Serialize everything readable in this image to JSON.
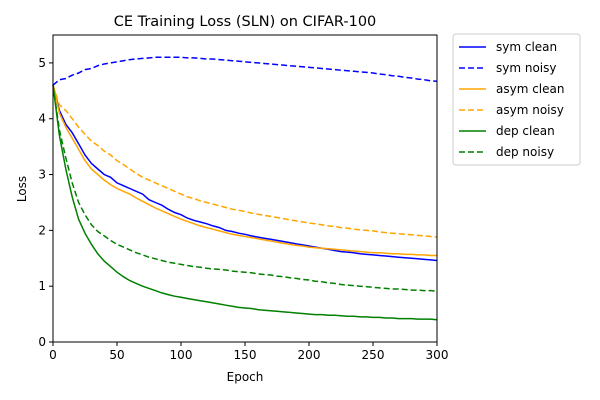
{
  "chart_data": {
    "type": "line",
    "title": "CE Training Loss (SLN) on CIFAR-100",
    "xlabel": "Epoch",
    "ylabel": "Loss",
    "xlim": [
      0,
      300
    ],
    "ylim": [
      0,
      5.5
    ],
    "xticks": [
      0,
      50,
      100,
      150,
      200,
      250,
      300
    ],
    "yticks": [
      0,
      1,
      2,
      3,
      4,
      5
    ],
    "grid": false,
    "legend_position": "outside-right",
    "x": [
      0,
      5,
      10,
      15,
      20,
      25,
      30,
      35,
      40,
      45,
      50,
      55,
      60,
      65,
      70,
      75,
      80,
      85,
      90,
      95,
      100,
      105,
      110,
      115,
      120,
      125,
      130,
      135,
      140,
      145,
      150,
      155,
      160,
      165,
      170,
      175,
      180,
      185,
      190,
      195,
      200,
      205,
      210,
      215,
      220,
      225,
      230,
      235,
      240,
      245,
      250,
      255,
      260,
      265,
      270,
      275,
      280,
      285,
      290,
      295,
      300
    ],
    "series": [
      {
        "name": "sym clean",
        "color": "#0000ff",
        "dash": "solid",
        "values": [
          4.6,
          4.15,
          3.9,
          3.75,
          3.55,
          3.35,
          3.2,
          3.1,
          3.0,
          2.95,
          2.85,
          2.8,
          2.75,
          2.7,
          2.65,
          2.55,
          2.5,
          2.45,
          2.38,
          2.32,
          2.28,
          2.22,
          2.18,
          2.15,
          2.12,
          2.08,
          2.05,
          2.0,
          1.98,
          1.95,
          1.93,
          1.9,
          1.88,
          1.86,
          1.84,
          1.82,
          1.8,
          1.78,
          1.76,
          1.74,
          1.72,
          1.7,
          1.68,
          1.66,
          1.64,
          1.62,
          1.61,
          1.6,
          1.58,
          1.57,
          1.56,
          1.55,
          1.54,
          1.53,
          1.52,
          1.51,
          1.5,
          1.49,
          1.48,
          1.47,
          1.46
        ]
      },
      {
        "name": "sym noisy",
        "color": "#0000ff",
        "dash": "dashed",
        "values": [
          4.6,
          4.7,
          4.72,
          4.78,
          4.82,
          4.88,
          4.9,
          4.95,
          4.98,
          5.0,
          5.02,
          5.04,
          5.06,
          5.07,
          5.08,
          5.09,
          5.1,
          5.1,
          5.1,
          5.1,
          5.1,
          5.09,
          5.09,
          5.08,
          5.07,
          5.07,
          5.06,
          5.05,
          5.04,
          5.03,
          5.02,
          5.01,
          5.0,
          4.99,
          4.98,
          4.97,
          4.96,
          4.95,
          4.94,
          4.93,
          4.92,
          4.91,
          4.9,
          4.89,
          4.88,
          4.87,
          4.86,
          4.85,
          4.84,
          4.83,
          4.82,
          4.8,
          4.79,
          4.77,
          4.76,
          4.74,
          4.73,
          4.71,
          4.7,
          4.68,
          4.67
        ]
      },
      {
        "name": "asym clean",
        "color": "#ffa500",
        "dash": "solid",
        "values": [
          4.6,
          4.1,
          3.85,
          3.65,
          3.45,
          3.25,
          3.1,
          3.0,
          2.9,
          2.82,
          2.75,
          2.7,
          2.65,
          2.58,
          2.52,
          2.46,
          2.4,
          2.35,
          2.3,
          2.25,
          2.2,
          2.16,
          2.12,
          2.08,
          2.05,
          2.02,
          1.99,
          1.96,
          1.93,
          1.91,
          1.89,
          1.87,
          1.85,
          1.83,
          1.81,
          1.79,
          1.77,
          1.75,
          1.73,
          1.72,
          1.7,
          1.69,
          1.68,
          1.67,
          1.66,
          1.65,
          1.64,
          1.63,
          1.62,
          1.61,
          1.6,
          1.6,
          1.59,
          1.58,
          1.58,
          1.57,
          1.57,
          1.56,
          1.56,
          1.55,
          1.55
        ]
      },
      {
        "name": "asym noisy",
        "color": "#ffa500",
        "dash": "dashed",
        "values": [
          4.6,
          4.25,
          4.15,
          4.0,
          3.85,
          3.72,
          3.6,
          3.52,
          3.42,
          3.35,
          3.25,
          3.18,
          3.1,
          3.02,
          2.95,
          2.9,
          2.85,
          2.8,
          2.75,
          2.7,
          2.65,
          2.6,
          2.57,
          2.53,
          2.5,
          2.47,
          2.44,
          2.41,
          2.38,
          2.36,
          2.34,
          2.31,
          2.29,
          2.27,
          2.25,
          2.23,
          2.21,
          2.19,
          2.17,
          2.15,
          2.13,
          2.12,
          2.1,
          2.08,
          2.07,
          2.05,
          2.04,
          2.02,
          2.01,
          2.0,
          1.99,
          1.97,
          1.96,
          1.95,
          1.94,
          1.93,
          1.92,
          1.91,
          1.9,
          1.89,
          1.88
        ]
      },
      {
        "name": "dep clean",
        "color": "#008000",
        "dash": "solid",
        "values": [
          4.6,
          3.7,
          3.1,
          2.6,
          2.2,
          1.95,
          1.75,
          1.58,
          1.45,
          1.35,
          1.25,
          1.17,
          1.1,
          1.05,
          1.0,
          0.96,
          0.92,
          0.88,
          0.85,
          0.82,
          0.8,
          0.78,
          0.76,
          0.74,
          0.72,
          0.7,
          0.68,
          0.66,
          0.64,
          0.62,
          0.61,
          0.6,
          0.58,
          0.57,
          0.56,
          0.55,
          0.54,
          0.53,
          0.52,
          0.51,
          0.5,
          0.49,
          0.49,
          0.48,
          0.48,
          0.47,
          0.46,
          0.46,
          0.45,
          0.45,
          0.44,
          0.44,
          0.43,
          0.43,
          0.42,
          0.42,
          0.42,
          0.41,
          0.41,
          0.41,
          0.4
        ]
      },
      {
        "name": "dep noisy",
        "color": "#008000",
        "dash": "dashed",
        "values": [
          4.6,
          3.8,
          3.3,
          2.85,
          2.5,
          2.28,
          2.1,
          1.98,
          1.9,
          1.82,
          1.75,
          1.7,
          1.65,
          1.6,
          1.56,
          1.52,
          1.49,
          1.46,
          1.43,
          1.41,
          1.39,
          1.37,
          1.35,
          1.34,
          1.32,
          1.31,
          1.3,
          1.29,
          1.27,
          1.26,
          1.25,
          1.24,
          1.22,
          1.21,
          1.2,
          1.18,
          1.17,
          1.15,
          1.14,
          1.12,
          1.11,
          1.09,
          1.08,
          1.06,
          1.05,
          1.03,
          1.02,
          1.01,
          1.0,
          0.99,
          0.98,
          0.97,
          0.96,
          0.95,
          0.95,
          0.94,
          0.93,
          0.93,
          0.92,
          0.92,
          0.91
        ]
      }
    ]
  }
}
